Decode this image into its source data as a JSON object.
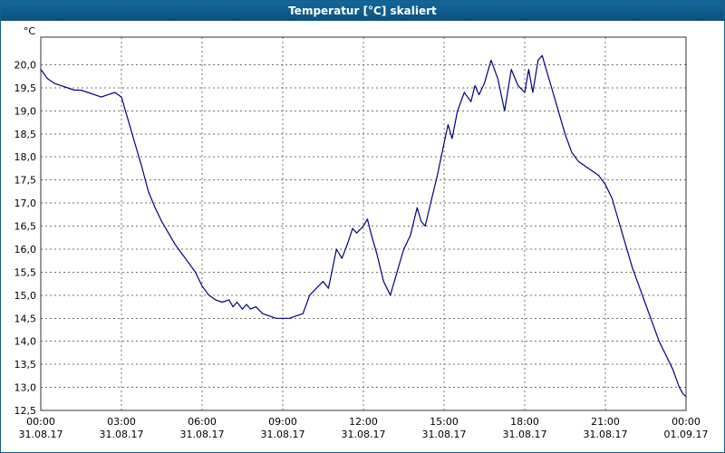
{
  "window": {
    "title": "Temperatur [°C] skaliert"
  },
  "colors": {
    "titlebar": "#0d527e",
    "titlebar_text": "#ffffff",
    "plot_border": "#333333",
    "gridline": "#707070",
    "line": "#000080",
    "label_text": "#000000",
    "background": "#ffffff"
  },
  "chart_data": {
    "type": "line",
    "title": "Temperatur [°C] skaliert",
    "y_axis_unit_label": "°C",
    "ylabel": "",
    "xlabel": "",
    "ylim": [
      12.5,
      20.6
    ],
    "xlim_hours": [
      0,
      24
    ],
    "grid": "dashed",
    "legend_position": "none",
    "y_ticks": [
      20.0,
      19.5,
      19.0,
      18.5,
      18.0,
      17.5,
      17.0,
      16.5,
      16.0,
      15.5,
      15.0,
      14.5,
      14.0,
      13.5,
      13.0,
      12.5
    ],
    "y_tick_labels": [
      "20,0",
      "19,5",
      "19,0",
      "18,5",
      "18,0",
      "17,5",
      "17,0",
      "16,5",
      "16,0",
      "15,5",
      "15,0",
      "14,5",
      "14,0",
      "13,5",
      "13,0",
      "12,5"
    ],
    "x_ticks_hours": [
      0,
      3,
      6,
      9,
      12,
      15,
      18,
      21,
      24
    ],
    "x_tick_time_labels": [
      "00:00",
      "03:00",
      "06:00",
      "09:00",
      "12:00",
      "15:00",
      "18:00",
      "21:00",
      "00:00"
    ],
    "x_tick_date_labels": [
      "31.08.17",
      "31.08.17",
      "31.08.17",
      "31.08.17",
      "31.08.17",
      "31.08.17",
      "31.08.17",
      "31.08.17",
      "01.09.17"
    ],
    "series": [
      {
        "name": "Temperatur",
        "color": "#000080",
        "x_hours": [
          0,
          0.25,
          0.5,
          0.75,
          1,
          1.25,
          1.5,
          1.75,
          2,
          2.25,
          2.5,
          2.75,
          3,
          3.25,
          3.5,
          3.75,
          4,
          4.25,
          4.5,
          4.75,
          5,
          5.25,
          5.5,
          5.75,
          6,
          6.25,
          6.5,
          6.75,
          7,
          7.15,
          7.3,
          7.5,
          7.65,
          7.8,
          8,
          8.25,
          8.5,
          8.75,
          9,
          9.25,
          9.5,
          9.75,
          10,
          10.25,
          10.5,
          10.7,
          11,
          11.2,
          11.4,
          11.6,
          11.75,
          12,
          12.15,
          12.3,
          12.5,
          12.75,
          13,
          13.25,
          13.5,
          13.75,
          14,
          14.15,
          14.3,
          14.5,
          14.75,
          15,
          15.15,
          15.3,
          15.5,
          15.75,
          16,
          16.15,
          16.3,
          16.5,
          16.75,
          17,
          17.25,
          17.5,
          17.75,
          18,
          18.15,
          18.3,
          18.5,
          18.65,
          18.8,
          19,
          19.25,
          19.5,
          19.75,
          20,
          20.25,
          20.5,
          20.75,
          21,
          21.25,
          21.5,
          21.75,
          22,
          22.25,
          22.5,
          22.75,
          23,
          23.25,
          23.5,
          23.75,
          23.9,
          24
        ],
        "values": [
          19.9,
          19.7,
          19.6,
          19.55,
          19.5,
          19.45,
          19.45,
          19.4,
          19.35,
          19.3,
          19.35,
          19.4,
          19.3,
          18.8,
          18.3,
          17.8,
          17.25,
          16.9,
          16.6,
          16.35,
          16.1,
          15.9,
          15.7,
          15.5,
          15.2,
          15.0,
          14.9,
          14.85,
          14.9,
          14.75,
          14.85,
          14.7,
          14.8,
          14.7,
          14.75,
          14.6,
          14.55,
          14.5,
          14.5,
          14.5,
          14.55,
          14.6,
          15.0,
          15.15,
          15.3,
          15.15,
          16.0,
          15.8,
          16.1,
          16.45,
          16.35,
          16.5,
          16.65,
          16.3,
          15.9,
          15.3,
          15.0,
          15.5,
          16.0,
          16.3,
          16.9,
          16.6,
          16.5,
          17.0,
          17.6,
          18.3,
          18.7,
          18.4,
          19.0,
          19.4,
          19.2,
          19.55,
          19.35,
          19.6,
          20.1,
          19.7,
          19.0,
          19.9,
          19.55,
          19.4,
          19.9,
          19.4,
          20.1,
          20.2,
          19.9,
          19.5,
          19.0,
          18.5,
          18.1,
          17.9,
          17.8,
          17.7,
          17.6,
          17.4,
          17.1,
          16.6,
          16.1,
          15.6,
          15.2,
          14.8,
          14.4,
          14.0,
          13.7,
          13.4,
          13.0,
          12.85,
          12.8
        ]
      }
    ]
  }
}
